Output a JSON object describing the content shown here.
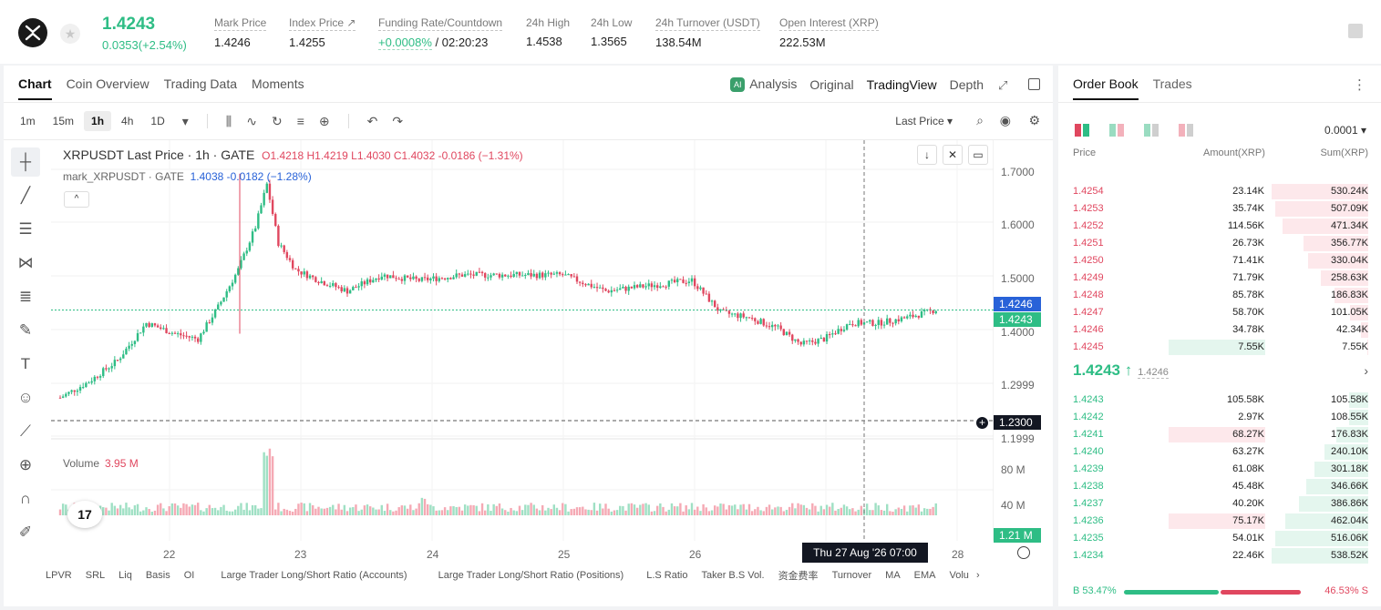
{
  "header": {
    "last_price": "1.4243",
    "change": "0.0353(+2.54%)",
    "stats": [
      {
        "label": "Mark Price",
        "value": "1.4246"
      },
      {
        "label": "Index Price ↗",
        "value": "1.4255"
      },
      {
        "label": "Funding Rate/Countdown",
        "value_green": "+0.0008%",
        "value": " / 02:20:23"
      },
      {
        "label": "24h High",
        "value": "1.4538"
      },
      {
        "label": "24h Low",
        "value": "1.3565"
      },
      {
        "label": "24h Turnover (USDT)",
        "value": "138.54M"
      },
      {
        "label": "Open Interest (XRP)",
        "value": "222.53M"
      }
    ]
  },
  "chart_tabs": {
    "left": [
      "Chart",
      "Coin Overview",
      "Trading Data",
      "Moments"
    ],
    "right": [
      "Analysis",
      "Original",
      "TradingView",
      "Depth"
    ],
    "ai_badge": "AI"
  },
  "toolbar": {
    "timeframes": [
      "1m",
      "15m",
      "1h",
      "4h",
      "1D"
    ],
    "price_source": "Last Price ▾"
  },
  "legend": {
    "title": "XRPUSDT Last Price · 1h · GATE",
    "ohlc": "O1.4218  H1.4219  L1.4030  C1.4032  -0.0186 (−1.31%)",
    "mark_name": "mark_XRPUSDT · GATE",
    "mark_value": "1.4038  -0.0182 (−1.28%)",
    "collapse": "^"
  },
  "volume": {
    "label": "Volume",
    "value": "3.95 M",
    "current": "1.21 M"
  },
  "price_axis": [
    "1.7000",
    "1.6000",
    "1.5000",
    "1.4000",
    "1.2999",
    "1.1999"
  ],
  "volume_axis": [
    "80 M",
    "40 M"
  ],
  "price_tags": {
    "mark": "1.4246",
    "last": "1.4243",
    "cursor": "1.2300"
  },
  "time_axis": [
    "22",
    "23",
    "24",
    "25",
    "26",
    "28"
  ],
  "crosshair_date": "Thu 27 Aug '26   07:00",
  "tv_logo": "17",
  "bottom_indicators": [
    "LPVR",
    "SRL",
    "Liq",
    "Basis",
    "OI",
    "Large Trader Long/Short Ratio (Accounts)",
    "Large Trader Long/Short Ratio (Positions)",
    "L.S Ratio",
    "Taker B.S Vol.",
    "资金费率",
    "Turnover",
    "MA",
    "EMA",
    "Volu"
  ],
  "order_book": {
    "tabs": [
      "Order Book",
      "Trades"
    ],
    "tick": "0.0001 ▾",
    "columns": {
      "price": "Price",
      "amount": "Amount(XRP)",
      "sum": "Sum(XRP)"
    },
    "asks": [
      {
        "price": "1.4254",
        "amount": "23.14K",
        "sum": "530.24K",
        "depth": 1.0,
        "amt": 0
      },
      {
        "price": "1.4253",
        "amount": "35.74K",
        "sum": "507.09K",
        "depth": 0.96,
        "amt": 0
      },
      {
        "price": "1.4252",
        "amount": "114.56K",
        "sum": "471.34K",
        "depth": 0.89,
        "amt": 0
      },
      {
        "price": "1.4251",
        "amount": "26.73K",
        "sum": "356.77K",
        "depth": 0.67,
        "amt": 0
      },
      {
        "price": "1.4250",
        "amount": "71.41K",
        "sum": "330.04K",
        "depth": 0.62,
        "amt": 0
      },
      {
        "price": "1.4249",
        "amount": "71.79K",
        "sum": "258.63K",
        "depth": 0.49,
        "amt": 0
      },
      {
        "price": "1.4248",
        "amount": "85.78K",
        "sum": "186.83K",
        "depth": 0.35,
        "amt": 0
      },
      {
        "price": "1.4247",
        "amount": "58.70K",
        "sum": "101.05K",
        "depth": 0.19,
        "amt": 0
      },
      {
        "price": "1.4246",
        "amount": "34.78K",
        "sum": "42.34K",
        "depth": 0.08,
        "amt": 0
      },
      {
        "price": "1.4245",
        "amount": "7.55K",
        "sum": "7.55K",
        "depth": 0.01,
        "amt": 1
      }
    ],
    "mid_price": "1.4243 ↑",
    "mid_mark": "1.4246",
    "bids": [
      {
        "price": "1.4243",
        "amount": "105.58K",
        "sum": "105.58K",
        "depth": 0.2,
        "amt": 0
      },
      {
        "price": "1.4242",
        "amount": "2.97K",
        "sum": "108.55K",
        "depth": 0.2,
        "amt": 0
      },
      {
        "price": "1.4241",
        "amount": "68.27K",
        "sum": "176.83K",
        "depth": 0.33,
        "amt": 1
      },
      {
        "price": "1.4240",
        "amount": "63.27K",
        "sum": "240.10K",
        "depth": 0.45,
        "amt": 0
      },
      {
        "price": "1.4239",
        "amount": "61.08K",
        "sum": "301.18K",
        "depth": 0.56,
        "amt": 0
      },
      {
        "price": "1.4238",
        "amount": "45.48K",
        "sum": "346.66K",
        "depth": 0.64,
        "amt": 0
      },
      {
        "price": "1.4237",
        "amount": "40.20K",
        "sum": "386.86K",
        "depth": 0.72,
        "amt": 0
      },
      {
        "price": "1.4236",
        "amount": "75.17K",
        "sum": "462.04K",
        "depth": 0.86,
        "amt": 1
      },
      {
        "price": "1.4235",
        "amount": "54.01K",
        "sum": "516.06K",
        "depth": 0.96,
        "amt": 0
      },
      {
        "price": "1.4234",
        "amount": "22.46K",
        "sum": "538.52K",
        "depth": 1.0,
        "amt": 0
      }
    ],
    "buy_ratio": "B 53.47%",
    "sell_ratio": "46.53% S",
    "buy_fraction": 0.5347
  },
  "colors": {
    "up": "#2ebd85",
    "down": "#e0475f",
    "mark_blue": "#2862d8"
  }
}
